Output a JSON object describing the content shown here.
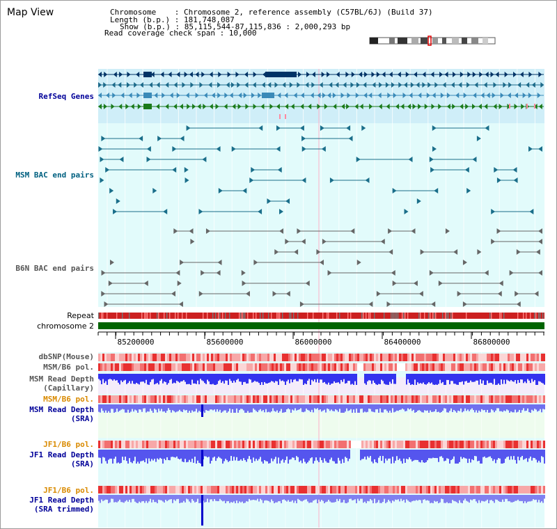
{
  "title": "Map View",
  "header": {
    "chromosome": "Chromosome    : Chromosome 2, reference assembly (C57BL/6J) (Build 37)",
    "length": "Length (b.p.) : 181,748,087",
    "show": "Show (b.p.) : 85,115,544-87,115,836 : 2,000,293 bp",
    "read_coverage": "Read coverage check span : 10,000"
  },
  "tracks": {
    "refseq": "RefSeq Genes",
    "msm_bac": "MSM BAC end pairs",
    "b6n_bac": "B6N BAC end pairs",
    "repeat": "Repeat",
    "chromosome": "chromosome 2",
    "dbsnp": "dbSNP(Mouse)",
    "msm_b6_pol_1": "MSM/B6 pol.",
    "msm_read_depth_cap_1": "MSM Read Depth",
    "msm_read_depth_cap_2": "(Capillary)",
    "msm_b6_pol_2": "MSM/B6 pol.",
    "msm_read_depth_sra_1": "MSM Read Depth",
    "msm_read_depth_sra_2": "(SRA)",
    "jf1_b6_pol_1": "JF1/B6 pol.",
    "jf1_read_depth_sra_1": "JF1 Read Depth",
    "jf1_read_depth_sra_2": "(SRA)",
    "jf1_b6_pol_2": "JF1/B6 pol.",
    "jf1_read_depth_trim_1": "JF1 Read Depth",
    "jf1_read_depth_trim_2": "(SRA trimmed)"
  },
  "ruler": {
    "ticks": [
      "85200000",
      "85600000",
      "86000000",
      "86400000",
      "86800000"
    ]
  },
  "colors": {
    "refseq_bg": "#cfeef8",
    "track_bg": "#e2fbfb",
    "refseq_label": "#000099",
    "msm_label": "#006080",
    "b6n_label": "#555555",
    "pol_label": "#d98a00",
    "depth_label": "#000099",
    "chromosome_bar": "#006400",
    "depth_blue": "#3333ee",
    "pol_red": "#e83030"
  },
  "icons": {
    "ideogram": "chromosome-ideogram-icon"
  }
}
